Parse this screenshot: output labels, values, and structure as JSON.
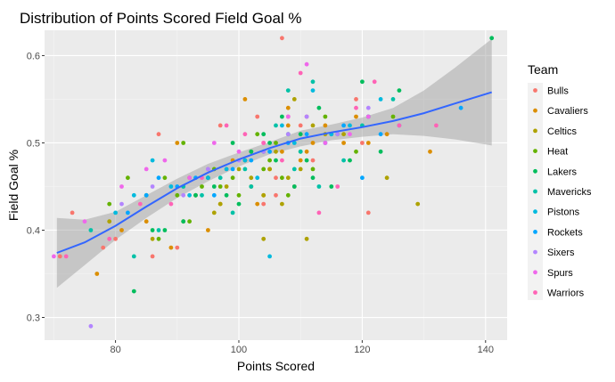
{
  "chart_data": {
    "type": "scatter",
    "title": "Distribution of Points Scored  Field Goal %",
    "xlabel": "Points Scored",
    "ylabel": "Field Goal %",
    "xlim": [
      68.5,
      143.5
    ],
    "ylim": [
      0.274,
      0.629
    ],
    "x_ticks": [
      80,
      100,
      120,
      140
    ],
    "y_ticks": [
      0.3,
      0.4,
      0.5,
      0.6
    ],
    "x_tick_labels": [
      "80",
      "100",
      "120",
      "140"
    ],
    "y_tick_labels": [
      "0.3",
      "0.4",
      "0.5",
      "0.6"
    ],
    "grid": true,
    "legend": {
      "title": "Team",
      "position": "right"
    },
    "series": [
      {
        "name": "Bulls",
        "color": "#F8766D",
        "x": [
          71,
          73,
          78,
          80,
          86,
          87,
          90,
          93,
          95,
          97,
          98,
          101,
          103,
          104,
          104,
          106,
          106,
          107,
          108,
          109,
          110,
          111,
          112,
          119,
          120,
          121
        ],
        "y": [
          0.37,
          0.42,
          0.38,
          0.39,
          0.37,
          0.51,
          0.38,
          0.44,
          0.47,
          0.52,
          0.47,
          0.48,
          0.53,
          0.43,
          0.49,
          0.44,
          0.46,
          0.62,
          0.53,
          0.45,
          0.52,
          0.53,
          0.48,
          0.55,
          0.5,
          0.42
        ]
      },
      {
        "name": "Cavaliers",
        "color": "#DB8E00",
        "x": [
          77,
          81,
          85,
          89,
          90,
          92,
          95,
          97,
          99,
          101,
          102,
          103,
          104,
          105,
          107,
          108,
          108,
          110,
          111,
          112,
          114,
          117,
          119,
          121,
          124,
          131
        ],
        "y": [
          0.35,
          0.4,
          0.41,
          0.38,
          0.5,
          0.46,
          0.4,
          0.43,
          0.48,
          0.55,
          0.45,
          0.43,
          0.44,
          0.47,
          0.49,
          0.52,
          0.54,
          0.48,
          0.49,
          0.5,
          0.52,
          0.5,
          0.53,
          0.5,
          0.51,
          0.49
        ]
      },
      {
        "name": "Celtics",
        "color": "#AEA200",
        "x": [
          79,
          86,
          91,
          93,
          95,
          96,
          97,
          98,
          100,
          101,
          102,
          104,
          104,
          105,
          106,
          107,
          108,
          109,
          110,
          111,
          112,
          114,
          117,
          121,
          124,
          129
        ],
        "y": [
          0.41,
          0.39,
          0.41,
          0.44,
          0.46,
          0.42,
          0.43,
          0.45,
          0.47,
          0.48,
          0.46,
          0.44,
          0.39,
          0.47,
          0.49,
          0.43,
          0.46,
          0.55,
          0.47,
          0.39,
          0.52,
          0.51,
          0.51,
          0.53,
          0.46,
          0.43
        ]
      },
      {
        "name": "Heat",
        "color": "#64B200",
        "x": [
          79,
          82,
          85,
          87,
          88,
          90,
          91,
          92,
          94,
          96,
          97,
          99,
          100,
          102,
          103,
          104,
          105,
          106,
          107,
          108,
          110,
          112,
          114,
          116,
          119,
          125
        ],
        "y": [
          0.43,
          0.46,
          0.44,
          0.39,
          0.46,
          0.44,
          0.5,
          0.41,
          0.45,
          0.47,
          0.45,
          0.46,
          0.44,
          0.49,
          0.51,
          0.47,
          0.48,
          0.5,
          0.46,
          0.44,
          0.49,
          0.47,
          0.53,
          0.51,
          0.49,
          0.53
        ]
      },
      {
        "name": "Lakers",
        "color": "#00BD5C",
        "x": [
          83,
          86,
          88,
          91,
          93,
          95,
          96,
          98,
          99,
          100,
          102,
          104,
          105,
          106,
          107,
          108,
          109,
          110,
          111,
          112,
          113,
          115,
          118,
          120,
          123,
          126,
          141
        ],
        "y": [
          0.33,
          0.4,
          0.4,
          0.41,
          0.44,
          0.46,
          0.45,
          0.44,
          0.5,
          0.43,
          0.49,
          0.51,
          0.5,
          0.48,
          0.53,
          0.51,
          0.45,
          0.51,
          0.48,
          0.46,
          0.54,
          0.45,
          0.48,
          0.57,
          0.49,
          0.56,
          0.62
        ]
      },
      {
        "name": "Mavericks",
        "color": "#00C1A7",
        "x": [
          76,
          83,
          87,
          91,
          94,
          97,
          99,
          101,
          102,
          104,
          106,
          108,
          109,
          110,
          112,
          113,
          115,
          117,
          120,
          125
        ],
        "y": [
          0.4,
          0.37,
          0.4,
          0.45,
          0.44,
          0.46,
          0.42,
          0.47,
          0.45,
          0.49,
          0.52,
          0.56,
          0.47,
          0.49,
          0.57,
          0.45,
          0.51,
          0.48,
          0.52,
          0.55
        ]
      },
      {
        "name": "Pistons",
        "color": "#00BADE",
        "x": [
          80,
          83,
          86,
          89,
          92,
          95,
          98,
          101,
          103,
          105,
          107,
          109,
          112,
          115,
          118,
          121,
          123
        ],
        "y": [
          0.42,
          0.44,
          0.48,
          0.45,
          0.44,
          0.46,
          0.47,
          0.48,
          0.46,
          0.37,
          0.52,
          0.5,
          0.56,
          0.51,
          0.52,
          0.53,
          0.55
        ]
      },
      {
        "name": "Rockets",
        "color": "#00A6FF",
        "x": [
          82,
          85,
          87,
          90,
          93,
          96,
          99,
          102,
          105,
          108,
          111,
          114,
          117,
          120,
          123,
          126,
          136
        ],
        "y": [
          0.42,
          0.44,
          0.46,
          0.45,
          0.46,
          0.44,
          0.47,
          0.48,
          0.49,
          0.5,
          0.51,
          0.5,
          0.52,
          0.46,
          0.51,
          0.52,
          0.54
        ]
      },
      {
        "name": "Sixers",
        "color": "#B385FF",
        "x": [
          76,
          81,
          86,
          91,
          95,
          100,
          104,
          108,
          111,
          116,
          121
        ],
        "y": [
          0.29,
          0.43,
          0.45,
          0.44,
          0.47,
          0.48,
          0.49,
          0.51,
          0.53,
          0.51,
          0.54
        ]
      },
      {
        "name": "Spurs",
        "color": "#EF67EB",
        "x": [
          70,
          75,
          81,
          85,
          88,
          92,
          96,
          100,
          104,
          108,
          111,
          114,
          118,
          121
        ],
        "y": [
          0.37,
          0.41,
          0.45,
          0.47,
          0.48,
          0.46,
          0.5,
          0.49,
          0.5,
          0.53,
          0.59,
          0.5,
          0.51,
          0.53
        ]
      },
      {
        "name": "Warriors",
        "color": "#FF63B6",
        "x": [
          72,
          79,
          84,
          89,
          94,
          98,
          101,
          104,
          107,
          110,
          113,
          116,
          119,
          122,
          126,
          132
        ],
        "y": [
          0.37,
          0.39,
          0.43,
          0.43,
          0.46,
          0.52,
          0.51,
          0.5,
          0.48,
          0.58,
          0.42,
          0.45,
          0.54,
          0.57,
          0.52,
          0.52
        ]
      }
    ],
    "smooth": {
      "color": "#3366FF",
      "band_color": "#999999",
      "x": [
        70.5,
        75,
        80,
        85,
        90,
        95,
        100,
        105,
        110,
        115,
        120,
        125,
        130,
        135,
        141
      ],
      "y": [
        0.374,
        0.386,
        0.405,
        0.427,
        0.448,
        0.466,
        0.481,
        0.494,
        0.505,
        0.512,
        0.518,
        0.525,
        0.534,
        0.545,
        0.558
      ],
      "lower": [
        0.334,
        0.36,
        0.389,
        0.414,
        0.437,
        0.456,
        0.473,
        0.487,
        0.496,
        0.503,
        0.507,
        0.51,
        0.508,
        0.504,
        0.497
      ],
      "upper": [
        0.414,
        0.412,
        0.421,
        0.44,
        0.459,
        0.476,
        0.489,
        0.501,
        0.514,
        0.521,
        0.529,
        0.54,
        0.56,
        0.586,
        0.619
      ]
    }
  }
}
